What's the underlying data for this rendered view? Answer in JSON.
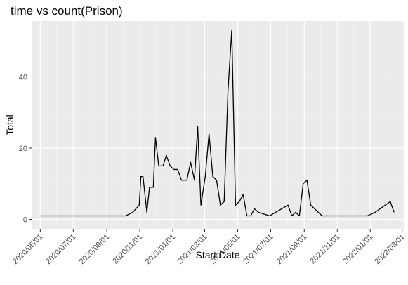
{
  "chart_data": {
    "type": "line",
    "title": "time vs count(Prison)",
    "xlabel": "Start Date",
    "ylabel": "Total",
    "x_ticks": [
      "2020/05/01",
      "2020/07/01",
      "2020/09/01",
      "2020/11/01",
      "2021/01/01",
      "2021/03/01",
      "2021/05/01",
      "2021/07/01",
      "2021/09/01",
      "2021/11/01",
      "2022/01/01",
      "2022/03/01"
    ],
    "y_ticks": [
      0,
      20,
      40
    ],
    "xlim": [
      "2020/04/15",
      "2022/03/04"
    ],
    "ylim": [
      -2.65,
      55.65
    ],
    "grid": true,
    "series": [
      {
        "name": "count",
        "color": "#000000",
        "points": [
          [
            "2020/05/01",
            1
          ],
          [
            "2020/10/06",
            1
          ],
          [
            "2020/10/19",
            2
          ],
          [
            "2020/10/31",
            4
          ],
          [
            "2020/11/03",
            12
          ],
          [
            "2020/11/07",
            12
          ],
          [
            "2020/11/14",
            2
          ],
          [
            "2020/11/19",
            9
          ],
          [
            "2020/11/26",
            9
          ],
          [
            "2020/11/30",
            23
          ],
          [
            "2020/12/06",
            15
          ],
          [
            "2020/12/14",
            15
          ],
          [
            "2020/12/20",
            18
          ],
          [
            "2020/12/27",
            15
          ],
          [
            "2021/01/03",
            14
          ],
          [
            "2021/01/10",
            14
          ],
          [
            "2021/01/17",
            11
          ],
          [
            "2021/01/27",
            11
          ],
          [
            "2021/02/03",
            16
          ],
          [
            "2021/02/10",
            11
          ],
          [
            "2021/02/16",
            26
          ],
          [
            "2021/02/22",
            4
          ],
          [
            "2021/03/02",
            12
          ],
          [
            "2021/03/09",
            24
          ],
          [
            "2021/03/16",
            12
          ],
          [
            "2021/03/23",
            11
          ],
          [
            "2021/03/30",
            4
          ],
          [
            "2021/04/06",
            5
          ],
          [
            "2021/04/13",
            36
          ],
          [
            "2021/04/20",
            53
          ],
          [
            "2021/04/27",
            4
          ],
          [
            "2021/05/04",
            5
          ],
          [
            "2021/05/11",
            7
          ],
          [
            "2021/05/18",
            1
          ],
          [
            "2021/05/25",
            1
          ],
          [
            "2021/06/01",
            3
          ],
          [
            "2021/06/08",
            2
          ],
          [
            "2021/06/29",
            1
          ],
          [
            "2021/08/02",
            4
          ],
          [
            "2021/08/09",
            1
          ],
          [
            "2021/08/16",
            2
          ],
          [
            "2021/08/23",
            1
          ],
          [
            "2021/08/30",
            10
          ],
          [
            "2021/09/06",
            11
          ],
          [
            "2021/09/13",
            4
          ],
          [
            "2021/10/04",
            1
          ],
          [
            "2021/12/27",
            1
          ],
          [
            "2022/01/10",
            2
          ],
          [
            "2022/02/07",
            5
          ],
          [
            "2022/02/14",
            2
          ]
        ]
      }
    ]
  }
}
